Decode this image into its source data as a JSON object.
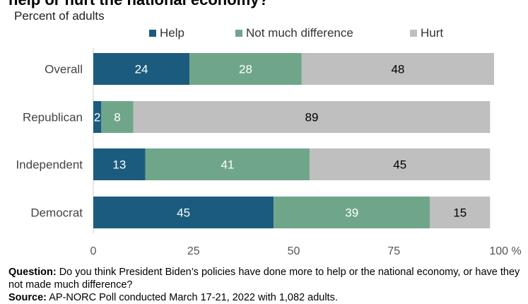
{
  "header": {
    "title": "help or hurt the national economy?",
    "subtitle": "Percent of adults"
  },
  "chart_data": {
    "type": "bar",
    "orientation": "horizontal",
    "stacked": true,
    "categories": [
      "Overall",
      "Republican",
      "Independent",
      "Democrat"
    ],
    "series": [
      {
        "name": "Help",
        "color": "#1b5c7e",
        "values": [
          24,
          2,
          13,
          45
        ]
      },
      {
        "name": "Not much difference",
        "color": "#6fa68a",
        "values": [
          28,
          8,
          41,
          39
        ]
      },
      {
        "name": "Hurt",
        "color": "#bfbfbf",
        "values": [
          48,
          89,
          45,
          15
        ]
      }
    ],
    "xticks": [
      "0",
      "25",
      "50",
      "75",
      "100 %"
    ],
    "xlim": [
      0,
      100
    ],
    "legend_position": "top",
    "grid": false
  },
  "footer": {
    "question_label": "Question:",
    "question_text": "Do you think President Biden’s policies have done more to help or the national economy, or have they not made much difference?",
    "source_label": "Source:",
    "source_text": "AP-NORC Poll conducted March 17-21, 2022 with 1,082 adults."
  }
}
